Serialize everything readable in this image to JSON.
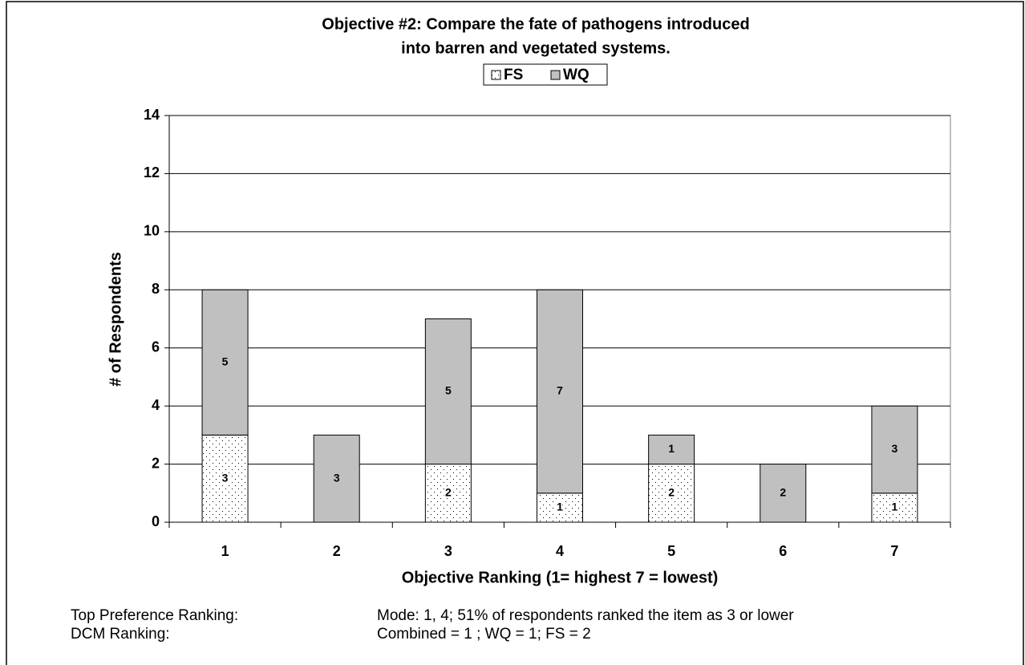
{
  "chart_data": {
    "type": "stacked_bar",
    "title": [
      "Objective #2:  Compare the fate of pathogens introduced",
      "into barren and vegetated systems."
    ],
    "x_label": "Objective Ranking (1= highest 7 = lowest)",
    "y_label": "# of Respondents",
    "categories": [
      "1",
      "2",
      "3",
      "4",
      "5",
      "6",
      "7"
    ],
    "series": [
      {
        "name": "FS",
        "color": "#ffffff",
        "pattern": "dotted",
        "values": [
          3,
          0,
          2,
          1,
          2,
          0,
          1
        ]
      },
      {
        "name": "WQ",
        "color": "#c0c0c0",
        "values": [
          5,
          3,
          5,
          7,
          1,
          2,
          3
        ]
      }
    ],
    "ylim": [
      0,
      14
    ],
    "yticks": [
      0,
      2,
      4,
      6,
      8,
      10,
      12,
      14
    ],
    "grid": true,
    "legend": "top"
  },
  "notes": [
    [
      "Top Preference Ranking:",
      "Mode:  1, 4; 51% of respondents ranked the item as 3 or lower"
    ],
    [
      "DCM Ranking:",
      "Combined = 1 ; WQ =  1;  FS =  2"
    ]
  ]
}
